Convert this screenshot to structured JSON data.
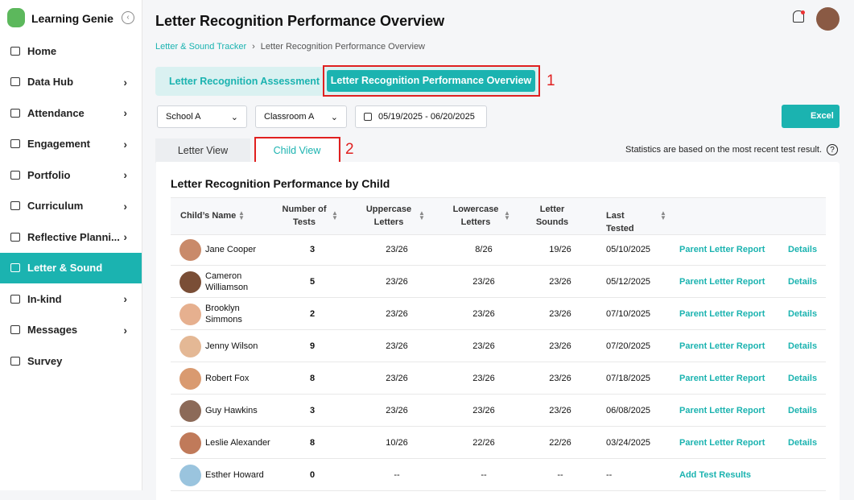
{
  "sidebar": {
    "brand": "Learning Genie",
    "items": [
      "Home",
      "Data Hub",
      "Attendance",
      "Engagement",
      "Portfolio",
      "Curriculum",
      "Reflective Planni...",
      "Letter & Sound",
      "In-kind",
      "Messages",
      "Survey"
    ]
  },
  "header": {
    "title": "Letter Recognition Performance Overview"
  },
  "breadcrumb": [
    "Letter & Sound Tracker",
    "Letter Recognition Performance Overview"
  ],
  "tabs": [
    "Letter Recognition Assessment",
    "Letter Recognition Performance Overview"
  ],
  "annotations": [
    "1",
    "2"
  ],
  "filters": [
    "School A",
    "Classroom A",
    "05/19/2025 - 06/20/2025"
  ],
  "export": "Excel",
  "view_tabs": [
    "Letter View",
    "Child View"
  ],
  "note": "Statistics are based on the most recent test result.",
  "table": {
    "title": "Letter Recognition Performance by Child",
    "columns": [
      "Child’s Name",
      "Number of Tests",
      "Uppercase Letters",
      "Lowercase Letters",
      "Letter Sounds",
      "Last Tested"
    ],
    "rows": [
      [
        "Jane Cooper",
        3,
        "23/26",
        "8/26",
        "19/26",
        "05/10/2025",
        "Parent Letter Report",
        "Details"
      ],
      [
        "Cameron Williamson",
        5,
        "23/26",
        "23/26",
        "23/26",
        "05/12/2025",
        "Parent Letter Report",
        "Details"
      ],
      [
        "Brooklyn Simmons",
        2,
        "23/26",
        "23/26",
        "23/26",
        "07/10/2025",
        "Parent Letter Report",
        "Details"
      ],
      [
        "Jenny Wilson",
        9,
        "23/26",
        "23/26",
        "23/26",
        "07/20/2025",
        "Parent Letter Report",
        "Details"
      ],
      [
        "Robert Fox",
        8,
        "23/26",
        "23/26",
        "23/26",
        "07/18/2025",
        "Parent Letter Report",
        "Details"
      ],
      [
        "Guy Hawkins",
        3,
        "23/26",
        "23/26",
        "23/26",
        "06/08/2025",
        "Parent Letter Report",
        "Details"
      ],
      [
        "Leslie Alexander",
        8,
        "10/26",
        "22/26",
        "22/26",
        "03/24/2025",
        "Parent Letter Report",
        "Details"
      ],
      [
        "Esther Howard",
        0,
        "--",
        "--",
        "--",
        "--",
        "Add Test Results"
      ]
    ]
  }
}
